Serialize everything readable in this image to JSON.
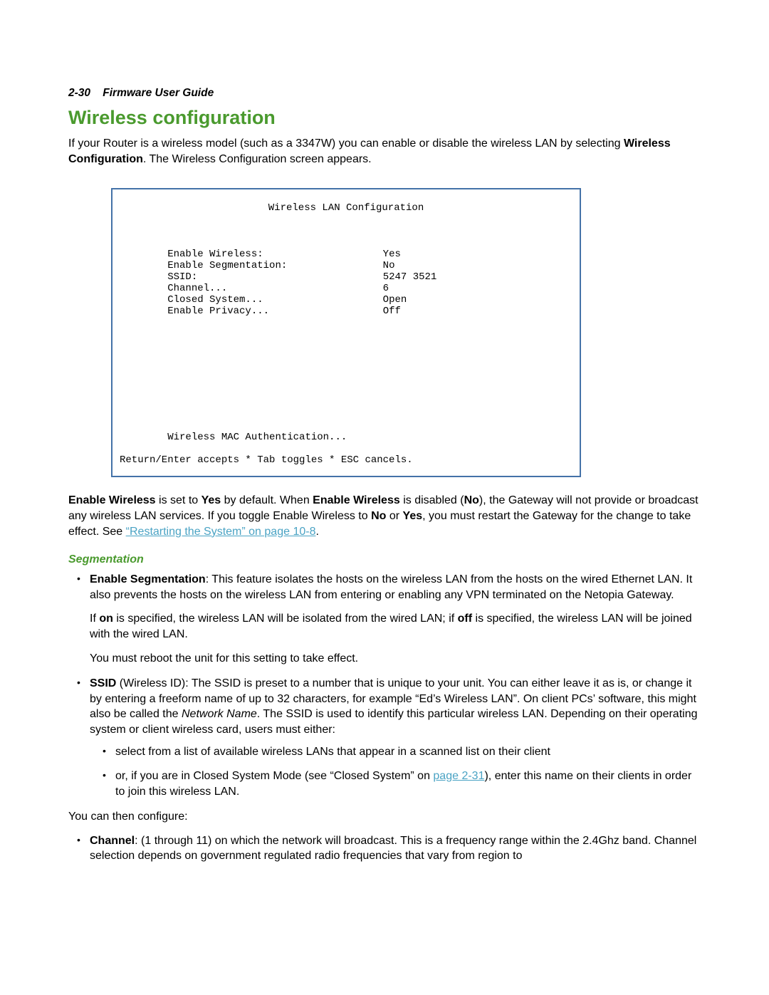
{
  "colors": {
    "heading_green": "#4a9a2e",
    "link_blue": "#4aa3c4",
    "terminal_border": "#4472a8",
    "text": "#000000",
    "background": "#ffffff"
  },
  "header": {
    "page_ref": "2-30",
    "guide_title": "Firmware User Guide"
  },
  "title": "Wireless configuration",
  "intro": {
    "part1": "If your Router is a wireless model (such as a 3347W) you can enable or disable the wireless LAN by selecting ",
    "bold": "Wireless Configuration",
    "part2": ". The Wireless Configuration screen appears."
  },
  "terminal": {
    "title": "Wireless LAN Configuration",
    "rows": [
      {
        "label": "Enable Wireless:",
        "value": "Yes"
      },
      {
        "label": "Enable Segmentation:",
        "value": "No"
      },
      {
        "label": "SSID:",
        "value": "5247 3521"
      },
      {
        "label": "Channel...",
        "value": "6"
      },
      {
        "label": "Closed System...",
        "value": "Open"
      },
      {
        "label": "Enable Privacy...",
        "value": "Off"
      }
    ],
    "mac_line": "Wireless MAC Authentication...",
    "footer": "Return/Enter accepts * Tab toggles * ESC cancels."
  },
  "enable_wireless_para": {
    "p1_bold": "Enable Wireless",
    "p1_a": " is set to ",
    "p1_yes": "Yes",
    "p1_b": " by default. When ",
    "p1_bold2": "Enable Wireless",
    "p1_c": " is disabled (",
    "p1_no": "No",
    "p1_d": "), the Gateway will not provide or broadcast any wireless LAN services. If you toggle Enable Wireless to ",
    "p1_no2": "No",
    "p1_e": " or ",
    "p1_yes2": "Yes",
    "p1_f": ", you must restart the Gateway for the change to take effect. See ",
    "link_text": "“Restarting the System” on page 10-8",
    "p1_g": "."
  },
  "segmentation_heading": "Segmentation",
  "bullets": {
    "seg": {
      "bold": "Enable Segmentation",
      "text1": ": This feature isolates the hosts on the wireless LAN from the hosts on the wired Ethernet LAN. It also prevents the hosts on the wireless LAN from entering or enabling any VPN terminated on the Netopia Gateway.",
      "para2_a": "If ",
      "para2_on": "on",
      "para2_b": " is specified, the wireless LAN will be isolated from the wired LAN; if ",
      "para2_off": "off",
      "para2_c": " is specified, the wireless LAN will be joined with the wired LAN.",
      "para3": "You must reboot the unit for this setting to take effect."
    },
    "ssid": {
      "bold": "SSID",
      "text1": " (Wireless ID): The SSID is preset to a number that is unique to your unit. You can either leave it as is, or change it by entering a freeform name of up to 32 characters, for example “Ed’s Wireless LAN”. On client PCs’ software, this might also be called the ",
      "italic": "Network Name",
      "text2": ". The SSID is used to identify this particular wireless LAN. Depending on their operating system or client wireless card, users must either:",
      "sub1": "select from a list of available wireless LANs that appear in a scanned list on their client",
      "sub2_a": "or, if you are in Closed System Mode (see “Closed System” on ",
      "sub2_link": "page 2-31",
      "sub2_b": "), enter this name on their clients in order to join this wireless LAN."
    },
    "then_configure": "You can then configure:",
    "channel": {
      "bold": "Channel",
      "text": ": (1 through 11) on which the network will broadcast. This is a frequency range within the 2.4Ghz band. Channel selection depends on government regulated radio frequencies that vary from region to"
    }
  }
}
